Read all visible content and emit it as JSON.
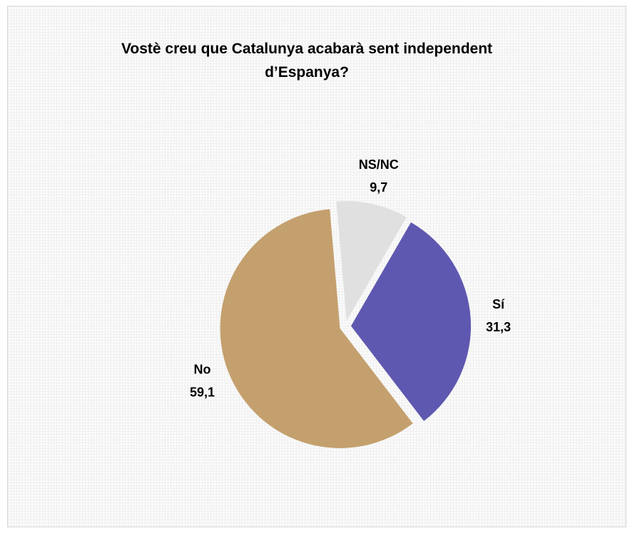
{
  "chart_data": {
    "type": "pie",
    "title": "Vostè creu que Catalunya acabarà sent independent d’Espanya?",
    "categories": [
      "Sí",
      "No",
      "NS/NC"
    ],
    "values": [
      31.3,
      59.1,
      9.7
    ],
    "value_labels": [
      "31,3",
      "59,1",
      "9,7"
    ],
    "colors": [
      "#5f58b0",
      "#c4a06e",
      "#e0e0e0"
    ]
  }
}
